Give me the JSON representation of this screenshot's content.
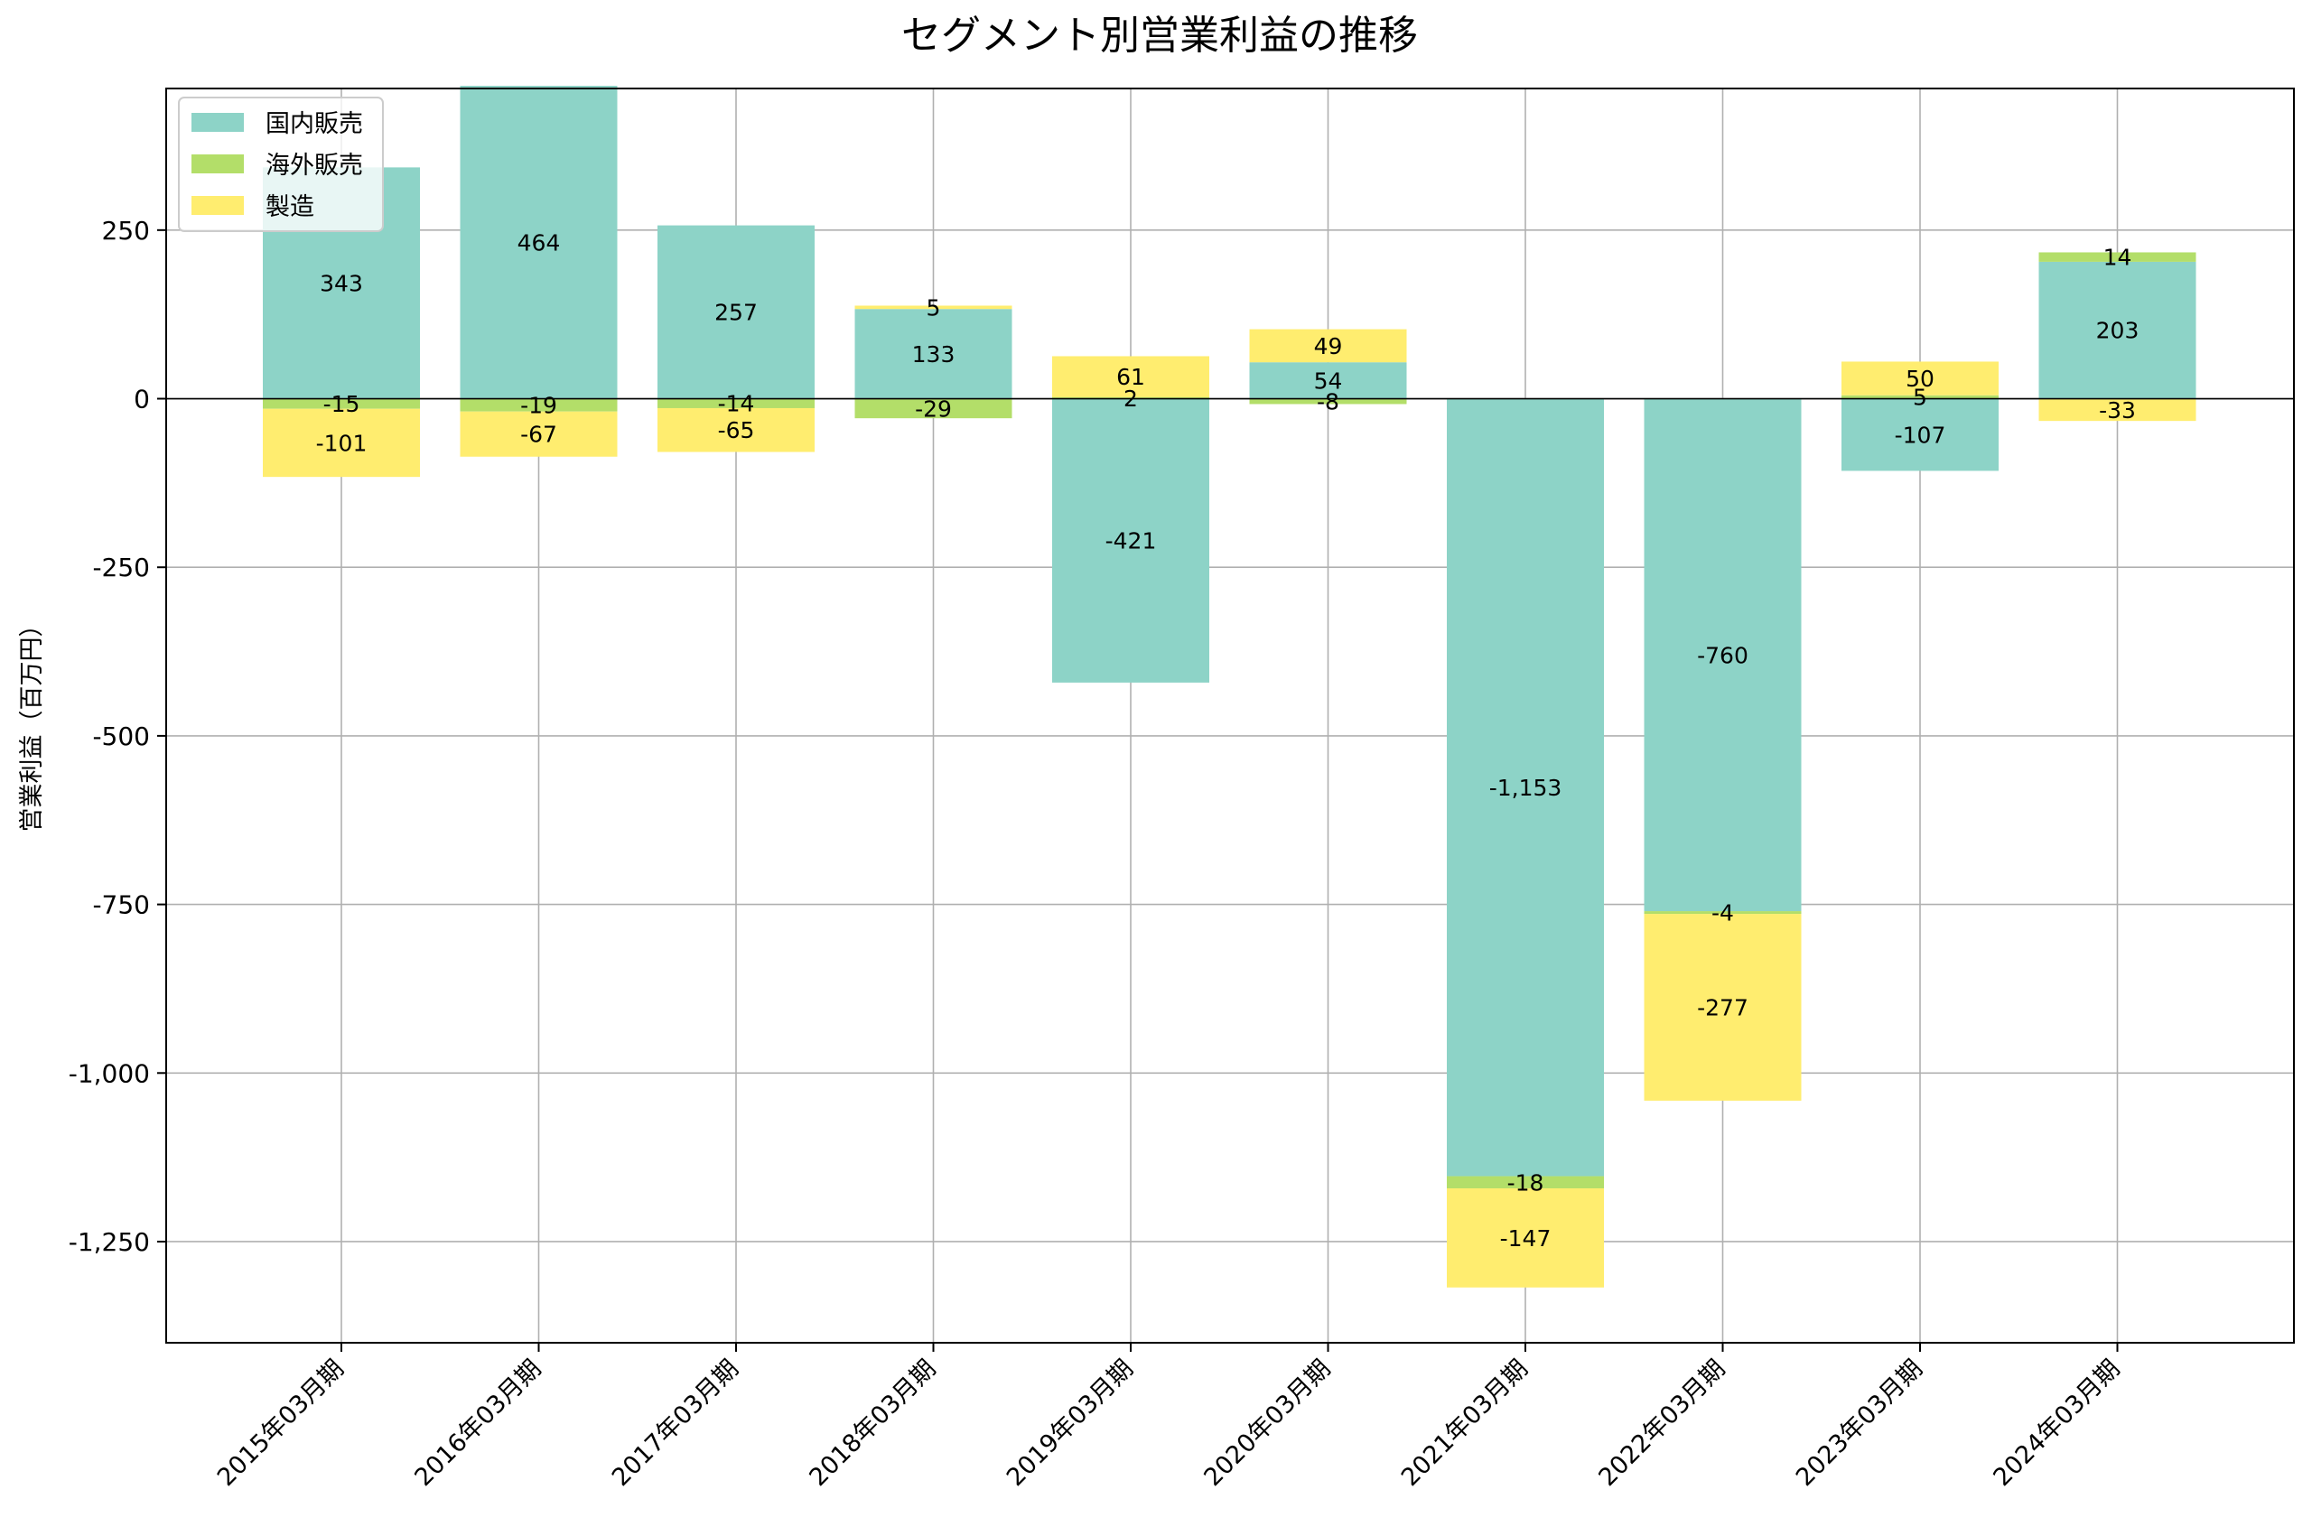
{
  "chart_data": {
    "type": "bar",
    "stacked": true,
    "title": "セグメント別営業利益の推移",
    "xlabel": "",
    "ylabel": "営業利益（百万円）",
    "ylim": [
      -1400,
      460
    ],
    "yticks": [
      250,
      0,
      -250,
      -500,
      -750,
      -1000,
      -1250
    ],
    "ytick_labels": [
      "250",
      "0",
      "-250",
      "-500",
      "-750",
      "-1,000",
      "-1,250"
    ],
    "grid": true,
    "legend_position": "top-left",
    "categories": [
      "2015年03月期",
      "2016年03月期",
      "2017年03月期",
      "2018年03月期",
      "2019年03月期",
      "2020年03月期",
      "2021年03月期",
      "2022年03月期",
      "2023年03月期",
      "2024年03月期"
    ],
    "series": [
      {
        "name": "国内販売",
        "color": "#8dd3c7",
        "values": [
          343,
          464,
          257,
          133,
          -421,
          54,
          -1153,
          -760,
          -107,
          203
        ],
        "labels": [
          "343",
          "464",
          "257",
          "133",
          "-421",
          "54",
          "-1,153",
          "-760",
          "-107",
          "203"
        ]
      },
      {
        "name": "海外販売",
        "color": "#b3de69",
        "values": [
          -15,
          -19,
          -14,
          -29,
          2,
          -8,
          -18,
          -4,
          5,
          14
        ],
        "labels": [
          "-15",
          "-19",
          "-14",
          "-29",
          "2",
          "-8",
          "-18",
          "-4",
          "5",
          "14"
        ]
      },
      {
        "name": "製造",
        "color": "#ffed6f",
        "values": [
          -101,
          -67,
          -65,
          5,
          61,
          49,
          -147,
          -277,
          50,
          -33
        ],
        "labels": [
          "-101",
          "-67",
          "-65",
          "5",
          "61",
          "49",
          "-147",
          "-277",
          "50",
          "-33"
        ]
      }
    ]
  }
}
